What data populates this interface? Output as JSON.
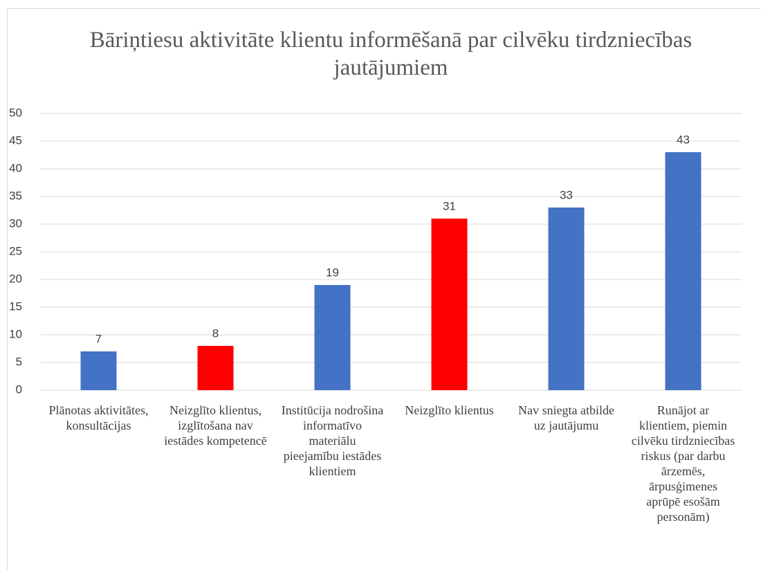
{
  "chart_data": {
    "type": "bar",
    "title": "Bāriņtiesu aktivitāte klientu informēšanā par cilvēku tirdzniecības jautājumiem",
    "categories": [
      "Plānotas aktivitātes, konsultācijas",
      "Neizglīto klientus, izglītošana nav iestādes kompetencē",
      "Institūcija nodrošina informatīvo materiālu pieejamību iestādes klientiem",
      "Neizglīto klientus",
      "Nav sniegta atbilde uz jautājumu",
      "Runājot ar klientiem, piemin cilvēku tirdzniecības riskus (par darbu ārzemēs, ārpusģimenes aprūpē esošām personām)"
    ],
    "values": [
      7,
      8,
      19,
      31,
      33,
      43
    ],
    "colors": [
      "#4472c4",
      "#ff0000",
      "#4472c4",
      "#ff0000",
      "#4472c4",
      "#4472c4"
    ],
    "ylim": [
      0,
      50
    ],
    "yticks": [
      0,
      5,
      10,
      15,
      20,
      25,
      30,
      35,
      40,
      45,
      50
    ],
    "grid": true
  }
}
